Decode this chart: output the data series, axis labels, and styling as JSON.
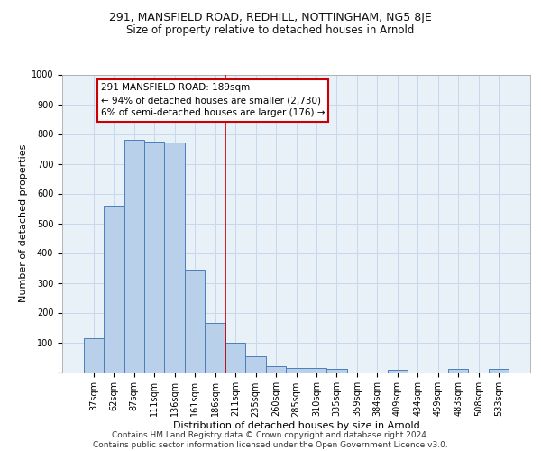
{
  "title1": "291, MANSFIELD ROAD, REDHILL, NOTTINGHAM, NG5 8JE",
  "title2": "Size of property relative to detached houses in Arnold",
  "xlabel": "Distribution of detached houses by size in Arnold",
  "ylabel": "Number of detached properties",
  "categories": [
    "37sqm",
    "62sqm",
    "87sqm",
    "111sqm",
    "136sqm",
    "161sqm",
    "186sqm",
    "211sqm",
    "235sqm",
    "260sqm",
    "285sqm",
    "310sqm",
    "335sqm",
    "359sqm",
    "384sqm",
    "409sqm",
    "434sqm",
    "459sqm",
    "483sqm",
    "508sqm",
    "533sqm"
  ],
  "values": [
    113,
    560,
    780,
    775,
    770,
    345,
    165,
    98,
    53,
    20,
    15,
    13,
    10,
    0,
    0,
    8,
    0,
    0,
    10,
    0,
    10
  ],
  "bar_color": "#b8d0ea",
  "bar_edge_color": "#4a7fbb",
  "grid_color": "#c8d8ec",
  "bg_color": "#e8f0f8",
  "vline_color": "#cc0000",
  "annotation_text": "291 MANSFIELD ROAD: 189sqm\n← 94% of detached houses are smaller (2,730)\n6% of semi-detached houses are larger (176) →",
  "annotation_box_color": "#cc0000",
  "ylim": [
    0,
    1000
  ],
  "yticks": [
    0,
    100,
    200,
    300,
    400,
    500,
    600,
    700,
    800,
    900,
    1000
  ],
  "footer1": "Contains HM Land Registry data © Crown copyright and database right 2024.",
  "footer2": "Contains public sector information licensed under the Open Government Licence v3.0.",
  "title1_fontsize": 9,
  "title2_fontsize": 8.5,
  "axis_label_fontsize": 8,
  "tick_fontsize": 7,
  "annotation_fontsize": 7.5,
  "footer_fontsize": 6.5
}
